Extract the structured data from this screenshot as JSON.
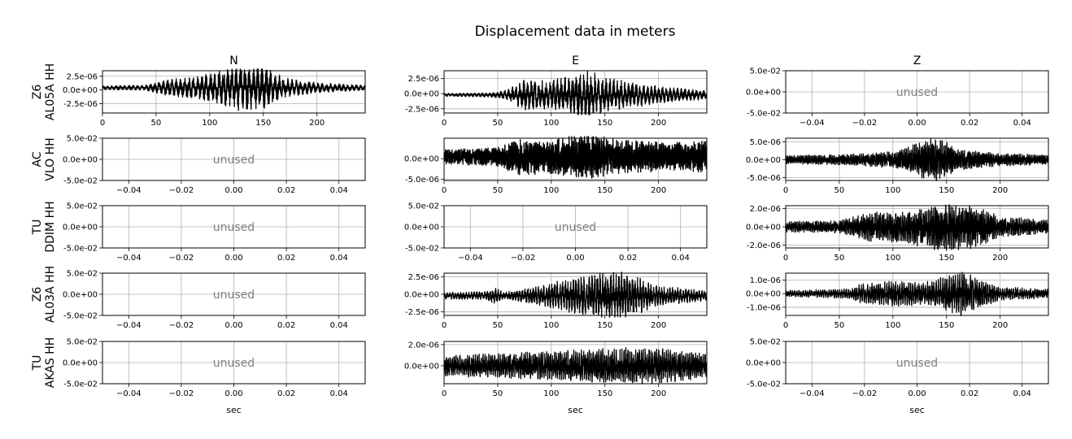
{
  "chart_data": {
    "type": "line",
    "title": "Displacement data in meters",
    "xlabel": "sec",
    "columns": [
      "N",
      "E",
      "Z"
    ],
    "row_labels": [
      [
        "Z6",
        "AL05A HH"
      ],
      [
        "AC",
        "VLO HH"
      ],
      [
        "TU",
        "DDIM HH"
      ],
      [
        "Z6",
        "AL03A HH"
      ],
      [
        "TU",
        "AKAS HH"
      ]
    ],
    "unused_label": "unused",
    "grid": true,
    "line_color": "#000000",
    "unused_color": "#808080",
    "grid_color": "#b0b0b0",
    "unused_axis": {
      "xlim": [
        -0.05,
        0.05
      ],
      "xticks": [
        -0.04,
        -0.02,
        0.0,
        0.02,
        0.04
      ],
      "xtick_labels": [
        "−0.04",
        "−0.02",
        "0.00",
        "0.02",
        "0.04"
      ],
      "ylim": [
        -0.05,
        0.05
      ],
      "yticks": [
        0.05,
        0.0,
        -0.05
      ],
      "ytick_labels": [
        "5.0e-02",
        "0.0e+00",
        "-5.0e-02"
      ]
    },
    "panels": [
      [
        {
          "used": true,
          "xlim": [
            0,
            245
          ],
          "xticks": [
            0,
            50,
            100,
            150,
            200
          ],
          "ylim": [
            -4.2e-06,
            3.5e-06
          ],
          "yticks": [
            2.5e-06,
            0.0,
            -2.5e-06
          ],
          "ytick_labels": [
            "2.5e-06",
            "0.0e+00",
            "-2.5e-06"
          ],
          "envelope": [
            [
              0,
              3e-07
            ],
            [
              40,
              4e-07
            ],
            [
              60,
              1.2e-06
            ],
            [
              90,
              1.8e-06
            ],
            [
              110,
              2.8e-06
            ],
            [
              125,
              3.6e-06
            ],
            [
              135,
              3.4e-06
            ],
            [
              150,
              3.5e-06
            ],
            [
              170,
              1.5e-06
            ],
            [
              200,
              8e-07
            ],
            [
              245,
              4e-07
            ]
          ],
          "base": 4e-07,
          "period": 4.0,
          "seed": 11
        },
        {
          "used": true,
          "xlim": [
            0,
            245
          ],
          "xticks": [
            0,
            50,
            100,
            150,
            200
          ],
          "ylim": [
            -3.2e-06,
            3.8e-06
          ],
          "yticks": [
            2.5e-06,
            0.0,
            -2.5e-06
          ],
          "ytick_labels": [
            "2.5e-06",
            "0.0e+00",
            "-2.5e-06"
          ],
          "envelope": [
            [
              0,
              2e-07
            ],
            [
              45,
              3e-07
            ],
            [
              60,
              8e-07
            ],
            [
              75,
              2.2e-06
            ],
            [
              100,
              2e-06
            ],
            [
              135,
              3.4e-06
            ],
            [
              150,
              2.4e-06
            ],
            [
              200,
              1.2e-06
            ],
            [
              245,
              6e-07
            ]
          ],
          "base": -2e-07,
          "period": 3.5,
          "seed": 23
        },
        {
          "used": false
        }
      ],
      [
        {
          "used": false
        },
        {
          "used": true,
          "xlim": [
            0,
            245
          ],
          "xticks": [
            0,
            50,
            100,
            150,
            200
          ],
          "ylim": [
            -5.3e-06,
            5e-06
          ],
          "yticks": [
            0.0,
            -5e-06
          ],
          "ytick_labels": [
            "0.0e+00",
            "-5.0e-06"
          ],
          "envelope": [
            [
              0,
              1.5e-06
            ],
            [
              50,
              2e-06
            ],
            [
              70,
              4e-06
            ],
            [
              100,
              3.5e-06
            ],
            [
              130,
              5e-06
            ],
            [
              160,
              3.5e-06
            ],
            [
              200,
              3e-06
            ],
            [
              245,
              3.2e-06
            ]
          ],
          "base": 5e-07,
          "period": 1.2,
          "seed": 37
        },
        {
          "used": true,
          "xlim": [
            0,
            245
          ],
          "xticks": [
            0,
            50,
            100,
            150,
            200
          ],
          "ylim": [
            -5.8e-06,
            6e-06
          ],
          "yticks": [
            5e-06,
            0.0,
            -5e-06
          ],
          "ytick_labels": [
            "5.0e-06",
            "0.0e+00",
            "-5.0e-06"
          ],
          "envelope": [
            [
              0,
              1e-06
            ],
            [
              50,
              1.2e-06
            ],
            [
              100,
              2e-06
            ],
            [
              140,
              5.5e-06
            ],
            [
              160,
              2.5e-06
            ],
            [
              200,
              1.5e-06
            ],
            [
              245,
              1.2e-06
            ]
          ],
          "base": 0.0,
          "period": 1.5,
          "seed": 41
        }
      ],
      [
        {
          "used": false
        },
        {
          "used": false
        },
        {
          "used": true,
          "xlim": [
            0,
            245
          ],
          "xticks": [
            0,
            50,
            100,
            150,
            200
          ],
          "ylim": [
            -2.3e-06,
            2.3e-06
          ],
          "yticks": [
            2e-06,
            0.0,
            -2e-06
          ],
          "ytick_labels": [
            "2.0e-06",
            "0.0e+00",
            "-2.0e-06"
          ],
          "envelope": [
            [
              0,
              5e-07
            ],
            [
              50,
              6e-07
            ],
            [
              80,
              1.4e-06
            ],
            [
              110,
              1.5e-06
            ],
            [
              140,
              2.2e-06
            ],
            [
              170,
              2.1e-06
            ],
            [
              200,
              1e-06
            ],
            [
              245,
              6e-07
            ]
          ],
          "base": 0.0,
          "period": 1.6,
          "seed": 53
        }
      ],
      [
        {
          "used": false
        },
        {
          "used": true,
          "xlim": [
            0,
            245
          ],
          "xticks": [
            0,
            50,
            100,
            150,
            200
          ],
          "ylim": [
            -3e-06,
            3e-06
          ],
          "yticks": [
            2.5e-06,
            0.0,
            -2.5e-06
          ],
          "ytick_labels": [
            "2.5e-06",
            "0.0e+00",
            "-2.5e-06"
          ],
          "envelope": [
            [
              0,
              4e-07
            ],
            [
              40,
              5e-07
            ],
            [
              48,
              1e-06
            ],
            [
              55,
              4e-07
            ],
            [
              90,
              1.2e-06
            ],
            [
              120,
              2.2e-06
            ],
            [
              150,
              2.9e-06
            ],
            [
              170,
              2.8e-06
            ],
            [
              200,
              1.2e-06
            ],
            [
              245,
              6e-07
            ]
          ],
          "base": -2e-07,
          "period": 2.5,
          "seed": 67
        },
        {
          "used": true,
          "xlim": [
            0,
            245
          ],
          "xticks": [
            0,
            50,
            100,
            150,
            200
          ],
          "ylim": [
            -1.6e-06,
            1.5e-06
          ],
          "yticks": [
            1e-06,
            0.0,
            -1e-06
          ],
          "ytick_labels": [
            "1.0e-06",
            "0.0e+00",
            "-1.0e-06"
          ],
          "envelope": [
            [
              0,
              2e-07
            ],
            [
              60,
              3e-07
            ],
            [
              70,
              6e-07
            ],
            [
              100,
              8e-07
            ],
            [
              130,
              7e-07
            ],
            [
              165,
              1.4e-06
            ],
            [
              200,
              4e-07
            ],
            [
              245,
              3e-07
            ]
          ],
          "base": 0.0,
          "period": 2.0,
          "seed": 79
        }
      ],
      [
        {
          "used": false
        },
        {
          "used": true,
          "xlim": [
            0,
            245
          ],
          "xticks": [
            0,
            50,
            100,
            150,
            200
          ],
          "ylim": [
            -1.7e-06,
            2.3e-06
          ],
          "yticks": [
            2e-06,
            0.0
          ],
          "ytick_labels": [
            "2.0e-06",
            "0.0e+00"
          ],
          "envelope": [
            [
              0,
              8e-07
            ],
            [
              50,
              1e-06
            ],
            [
              100,
              1.2e-06
            ],
            [
              150,
              1.4e-06
            ],
            [
              200,
              1.5e-06
            ],
            [
              245,
              1e-06
            ]
          ],
          "base": 0.0,
          "period": 1.8,
          "seed": 97
        },
        {
          "used": false
        }
      ]
    ]
  }
}
